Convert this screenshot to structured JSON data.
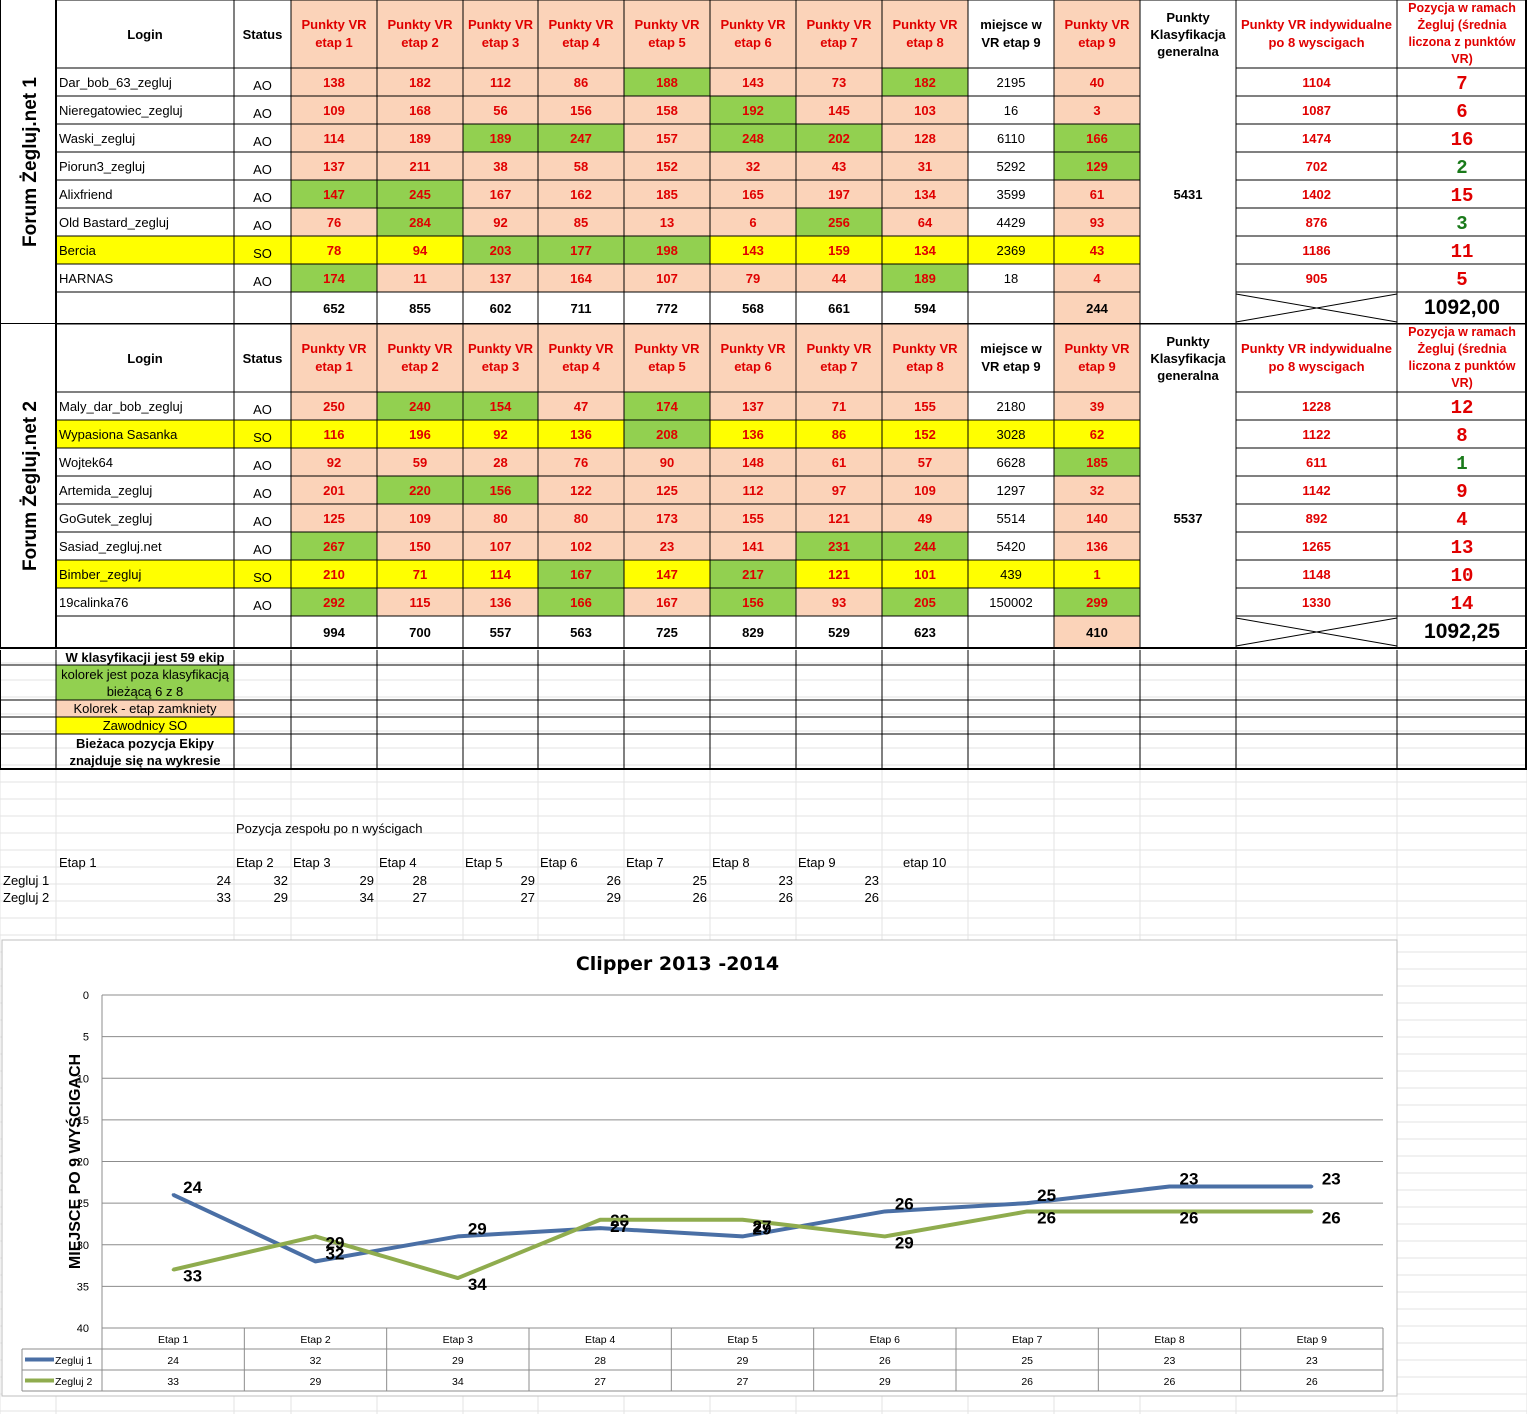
{
  "teams": [
    {
      "side_label": "Forum Żegluj.net 1",
      "headers": {
        "login": "Login",
        "status": "Status",
        "etaps": [
          "Punkty VR etap 1",
          "Punkty VR etap 2",
          "Punkty VR etap 3",
          "Punkty VR etap 4",
          "Punkty VR etap 5",
          "Punkty VR etap 6",
          "Punkty VR etap 7",
          "Punkty VR etap 8",
          "miejsce w VR etap 9",
          "Punkty VR etap 9"
        ],
        "klasyfikacja": "Punkty Klasyfikacja generalna",
        "indywidualne": "Punkty VR indywidualne po 8 wyscigach",
        "pozycja": "Pozycja w ramach Żegluj (średnia liczona z punktów VR)"
      },
      "players": [
        {
          "login": "Dar_bob_63_zegluj",
          "status": "AO",
          "row_bg": "",
          "values": [
            "138",
            "182",
            "112",
            "86",
            "188",
            "143",
            "73",
            "182",
            "2195",
            "40"
          ],
          "green": [
            4,
            7
          ],
          "indiv": "1104",
          "pos": "7",
          "pos_color": "#e00000"
        },
        {
          "login": "Nieregatowiec_zegluj",
          "status": "AO",
          "row_bg": "",
          "values": [
            "109",
            "168",
            "56",
            "156",
            "158",
            "192",
            "145",
            "103",
            "16",
            "3"
          ],
          "green": [
            5
          ],
          "indiv": "1087",
          "pos": "6",
          "pos_color": "#e00000"
        },
        {
          "login": "Waski_zegluj",
          "status": "AO",
          "row_bg": "",
          "values": [
            "114",
            "189",
            "189",
            "247",
            "157",
            "248",
            "202",
            "128",
            "6110",
            "166"
          ],
          "green": [
            2,
            3,
            5,
            6,
            9
          ],
          "indiv": "1474",
          "pos": "16",
          "pos_color": "#e00000"
        },
        {
          "login": "Piorun3_zegluj",
          "status": "AO",
          "row_bg": "",
          "values": [
            "137",
            "211",
            "38",
            "58",
            "152",
            "32",
            "43",
            "31",
            "5292",
            "129"
          ],
          "green": [
            9
          ],
          "indiv": "702",
          "pos": "2",
          "pos_color": "#1a7a1a"
        },
        {
          "login": "Alixfriend",
          "status": "AO",
          "row_bg": "",
          "values": [
            "147",
            "245",
            "167",
            "162",
            "185",
            "165",
            "197",
            "134",
            "3599",
            "61"
          ],
          "green": [
            0,
            1
          ],
          "indiv": "1402",
          "pos": "15",
          "pos_color": "#e00000"
        },
        {
          "login": "Old Bastard_zegluj",
          "status": "AO",
          "row_bg": "",
          "values": [
            "76",
            "284",
            "92",
            "85",
            "13",
            "6",
            "256",
            "64",
            "4429",
            "93"
          ],
          "green": [
            1,
            6
          ],
          "indiv": "876",
          "pos": "3",
          "pos_color": "#1a7a1a"
        },
        {
          "login": "Bercia",
          "status": "SO",
          "row_bg": "yellow",
          "values": [
            "78",
            "94",
            "203",
            "177",
            "198",
            "143",
            "159",
            "134",
            "2369",
            "43"
          ],
          "green": [
            2,
            3,
            4
          ],
          "indiv": "1186",
          "pos": "11",
          "pos_color": "#e00000"
        },
        {
          "login": "HARNAS",
          "status": "AO",
          "row_bg": "",
          "values": [
            "174",
            "11",
            "137",
            "164",
            "107",
            "79",
            "44",
            "189",
            "18",
            "4"
          ],
          "green": [
            0,
            7
          ],
          "indiv": "905",
          "pos": "5",
          "pos_color": "#e00000"
        }
      ],
      "totals": [
        "652",
        "855",
        "602",
        "711",
        "772",
        "568",
        "661",
        "594",
        "",
        "244"
      ],
      "klasyfikacja_value": "5431",
      "average": "1092,00"
    },
    {
      "side_label": "Forum Żegluj.net 2",
      "headers": {
        "login": "Login",
        "status": "Status",
        "etaps": [
          "Punkty VR etap 1",
          "Punkty VR etap 2",
          "Punkty VR etap 3",
          "Punkty VR etap 4",
          "Punkty VR etap 5",
          "Punkty VR etap 6",
          "Punkty VR etap 7",
          "Punkty VR etap 8",
          "miejsce w VR etap 9",
          "Punkty VR etap 9"
        ],
        "klasyfikacja": "Punkty Klasyfikacja generalna",
        "indywidualne": "Punkty VR indywidualne po 8 wyscigach",
        "pozycja": "Pozycja w ramach Żegluj (średnia liczona z punktów VR)"
      },
      "players": [
        {
          "login": "Maly_dar_bob_zegluj",
          "status": "AO",
          "row_bg": "",
          "values": [
            "250",
            "240",
            "154",
            "47",
            "174",
            "137",
            "71",
            "155",
            "2180",
            "39"
          ],
          "green": [
            1,
            2,
            4
          ],
          "indiv": "1228",
          "pos": "12",
          "pos_color": "#e00000"
        },
        {
          "login": "Wypasiona Sasanka",
          "status": "SO",
          "row_bg": "yellow",
          "values": [
            "116",
            "196",
            "92",
            "136",
            "208",
            "136",
            "86",
            "152",
            "3028",
            "62"
          ],
          "green": [
            4
          ],
          "indiv": "1122",
          "pos": "8",
          "pos_color": "#e00000"
        },
        {
          "login": "Wojtek64",
          "status": "AO",
          "row_bg": "",
          "values": [
            "92",
            "59",
            "28",
            "76",
            "90",
            "148",
            "61",
            "57",
            "6628",
            "185"
          ],
          "green": [
            9
          ],
          "indiv": "611",
          "pos": "1",
          "pos_color": "#1a7a1a"
        },
        {
          "login": "Artemida_zegluj",
          "status": "AO",
          "row_bg": "",
          "values": [
            "201",
            "220",
            "156",
            "122",
            "125",
            "112",
            "97",
            "109",
            "1297",
            "32"
          ],
          "green": [
            1,
            2
          ],
          "indiv": "1142",
          "pos": "9",
          "pos_color": "#e00000"
        },
        {
          "login": "GoGutek_zegluj",
          "status": "AO",
          "row_bg": "",
          "values": [
            "125",
            "109",
            "80",
            "80",
            "173",
            "155",
            "121",
            "49",
            "5514",
            "140"
          ],
          "green": [],
          "indiv": "892",
          "pos": "4",
          "pos_color": "#e00000"
        },
        {
          "login": "Sasiad_zegluj.net",
          "status": "AO",
          "row_bg": "",
          "values": [
            "267",
            "150",
            "107",
            "102",
            "23",
            "141",
            "231",
            "244",
            "5420",
            "136"
          ],
          "green": [
            0,
            6,
            7
          ],
          "indiv": "1265",
          "pos": "13",
          "pos_color": "#e00000"
        },
        {
          "login": "Bimber_zegluj",
          "status": "SO",
          "row_bg": "yellow",
          "values": [
            "210",
            "71",
            "114",
            "167",
            "147",
            "217",
            "121",
            "101",
            "439",
            "1"
          ],
          "green": [
            3,
            5
          ],
          "indiv": "1148",
          "pos": "10",
          "pos_color": "#e00000"
        },
        {
          "login": "19calinka76",
          "status": "AO",
          "row_bg": "",
          "values": [
            "292",
            "115",
            "136",
            "166",
            "167",
            "156",
            "93",
            "205",
            "150002",
            "299"
          ],
          "green": [
            0,
            3,
            5,
            7,
            9
          ],
          "indiv": "1330",
          "pos": "14",
          "pos_color": "#e00000"
        }
      ],
      "totals": [
        "994",
        "700",
        "557",
        "563",
        "725",
        "829",
        "529",
        "623",
        "",
        "410"
      ],
      "klasyfikacja_value": "5537",
      "average": "1092,25"
    }
  ],
  "legend": {
    "title": "W klasyfikacji jest 59 ekip",
    "green": "kolorek jest  poza klasyfikacją bieżącą 6 z 8",
    "peach": "Kolorek - etap zamkniety",
    "yellow": "Zawodnicy SO",
    "note": "Bieżaca pozycja Ekipy znajduje się na wykresie"
  },
  "position_table": {
    "title": "Pozycja zespołu po n wyścigach",
    "headers": [
      "Etap 1",
      "Etap 2",
      "Etap 3",
      "Etap 4",
      "Etap 5",
      "Etap 6",
      "Etap 7",
      "Etap 8",
      "Etap 9",
      "etap 10"
    ],
    "rows": [
      {
        "name": "Zegluj 1",
        "values": [
          "24",
          "32",
          "29",
          "28",
          "29",
          "26",
          "25",
          "23",
          "23"
        ]
      },
      {
        "name": "Zegluj 2",
        "values": [
          "33",
          "29",
          "34",
          "27",
          "27",
          "29",
          "26",
          "26",
          "26"
        ]
      }
    ]
  },
  "colors": {
    "peach": "#fbd3b9",
    "green": "#92d050",
    "yellow": "#ffff00",
    "red_text": "#e00000",
    "series1": "#4a6fa5",
    "series2": "#8fac4e"
  },
  "chart_data": {
    "type": "line",
    "title": "Clipper 2013 -2014",
    "ylabel": "MIEJSCE PO 9 WYŚCIGACH",
    "xlabel": "",
    "categories": [
      "Etap 1",
      "Etap 2",
      "Etap 3",
      "Etap 4",
      "Etap 5",
      "Etap 6",
      "Etap 7",
      "Etap 8",
      "Etap 9"
    ],
    "ylim": [
      0,
      40
    ],
    "y_reversed": true,
    "y_ticks": [
      0,
      5,
      10,
      15,
      20,
      25,
      30,
      35,
      40
    ],
    "grid": true,
    "data_labels": true,
    "legend_placement": "data-table",
    "series": [
      {
        "name": "Zegluj 1",
        "color": "#4a6fa5",
        "values": [
          24,
          32,
          29,
          28,
          29,
          26,
          25,
          23,
          23
        ]
      },
      {
        "name": "Zegluj 2",
        "color": "#8fac4e",
        "values": [
          33,
          29,
          34,
          27,
          27,
          29,
          26,
          26,
          26
        ]
      }
    ]
  }
}
